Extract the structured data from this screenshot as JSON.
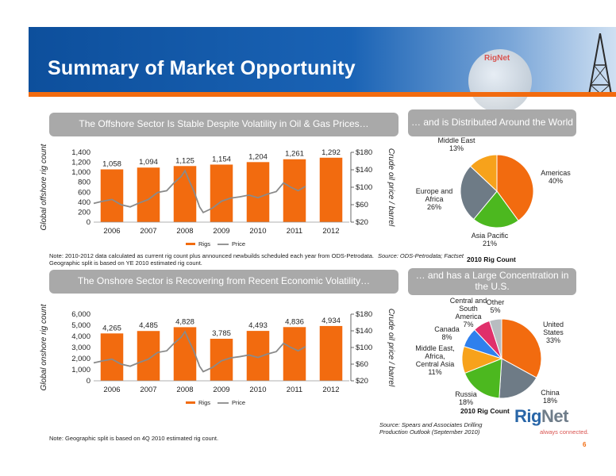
{
  "header": {
    "title": "Summary of Market Opportunity",
    "logo_small": "RigNet"
  },
  "offshore": {
    "banner": "The Offshore Sector Is Stable Despite Volatility in Oil & Gas Prices…",
    "note": "Note: 2010-2012 data calculated as current rig count plus announced newbuilds scheduled each year from ODS-Petrodata. Geographic split is based on YE 2010 estimated rig count.",
    "source": "Source:  ODS-Petrodata; Factset"
  },
  "onshore": {
    "banner": "The Onshore Sector is Recovering from Recent Economic Volatility…",
    "note": "Note: Geographic split is based on 4Q 2010 estimated rig count.",
    "source": "Source: Spears and Associates Drilling Production Outlook (September 2010)"
  },
  "world_banner": "… and is Distributed Around the World",
  "us_banner": "… and has a Large Concentration in the U.S.",
  "footer": {
    "logo_rig": "Rig",
    "logo_net": "Net",
    "tagline": "always connected.",
    "page": "6"
  },
  "chart_data": [
    {
      "type": "bar",
      "categories": [
        "2006",
        "2007",
        "2008",
        "2009",
        "2010",
        "2011",
        "2012"
      ],
      "series": [
        {
          "name": "Rigs",
          "values": [
            1058,
            1094,
            1125,
            1154,
            1204,
            1261,
            1292
          ],
          "labels": [
            "1,058",
            "1,094",
            "1,125",
            "1,154",
            "1,204",
            "1,261",
            "1,292"
          ]
        },
        {
          "name": "Price",
          "type": "line",
          "axis": "right",
          "x": [
            2006.0,
            2006.25,
            2006.5,
            2006.75,
            2007.0,
            2007.25,
            2007.5,
            2007.75,
            2008.0,
            2008.2,
            2008.4,
            2008.5,
            2008.6,
            2008.75,
            2008.9,
            2009.0,
            2009.25,
            2009.5,
            2009.75,
            2010.0,
            2010.25,
            2010.5,
            2010.75,
            2011.0,
            2011.2,
            2011.4,
            2011.6,
            2011.8
          ],
          "values": [
            63,
            68,
            72,
            60,
            55,
            64,
            72,
            88,
            92,
            110,
            125,
            138,
            118,
            90,
            55,
            42,
            52,
            68,
            75,
            78,
            82,
            76,
            84,
            90,
            110,
            100,
            92,
            102
          ]
        }
      ],
      "ylabel": "Global offshore rig count",
      "ylim": [
        0,
        1400
      ],
      "yticks": [
        "0",
        "200",
        "400",
        "600",
        "800",
        "1,000",
        "1,200",
        "1,400"
      ],
      "y2label": "Crude oil price / barrel",
      "y2lim": [
        20,
        180
      ],
      "y2ticks": [
        "$20",
        "$60",
        "$100",
        "$140",
        "$180"
      ],
      "legend": [
        "Rigs",
        "Price"
      ]
    },
    {
      "type": "bar",
      "categories": [
        "2006",
        "2007",
        "2008",
        "2009",
        "2010",
        "2011",
        "2012"
      ],
      "series": [
        {
          "name": "Rigs",
          "values": [
            4265,
            4485,
            4828,
            3785,
            4493,
            4836,
            4934
          ],
          "labels": [
            "4,265",
            "4,485",
            "4,828",
            "3,785",
            "4,493",
            "4,836",
            "4,934"
          ]
        },
        {
          "name": "Price",
          "type": "line",
          "axis": "right",
          "x": [
            2006.0,
            2006.25,
            2006.5,
            2006.75,
            2007.0,
            2007.25,
            2007.5,
            2007.75,
            2008.0,
            2008.2,
            2008.4,
            2008.5,
            2008.6,
            2008.75,
            2008.9,
            2009.0,
            2009.25,
            2009.5,
            2009.75,
            2010.0,
            2010.25,
            2010.5,
            2010.75,
            2011.0,
            2011.2,
            2011.4,
            2011.6,
            2011.8
          ],
          "values": [
            63,
            68,
            72,
            60,
            55,
            64,
            72,
            88,
            92,
            110,
            125,
            138,
            118,
            90,
            55,
            42,
            52,
            68,
            75,
            78,
            82,
            76,
            84,
            90,
            110,
            100,
            92,
            102
          ]
        }
      ],
      "ylabel": "Global onshore rig count",
      "ylim": [
        0,
        6000
      ],
      "yticks": [
        "0",
        "1,000",
        "2,000",
        "3,000",
        "4,000",
        "5,000",
        "6,000"
      ],
      "y2label": "Crude oil price / barrel",
      "y2lim": [
        20,
        180
      ],
      "y2ticks": [
        "$20",
        "$60",
        "$100",
        "$140",
        "$180"
      ],
      "legend": [
        "Rigs",
        "Price"
      ]
    },
    {
      "type": "pie",
      "title": "2010 Rig Count",
      "slices": [
        {
          "name": "Americas",
          "value": 40,
          "label": "40%",
          "color": "#f26b0f"
        },
        {
          "name": "Asia Pacific",
          "value": 21,
          "label": "21%",
          "color": "#4cb81f"
        },
        {
          "name": "Europe and Africa",
          "value": 26,
          "label": "26%",
          "color": "#6e7b86"
        },
        {
          "name": "Middle East",
          "value": 13,
          "label": "13%",
          "color": "#f7a21b"
        }
      ]
    },
    {
      "type": "pie",
      "title": "2010 Rig Count",
      "slices": [
        {
          "name": "United States",
          "value": 33,
          "label": "33%",
          "color": "#f26b0f"
        },
        {
          "name": "China",
          "value": 18,
          "label": "18%",
          "color": "#6e7b86"
        },
        {
          "name": "Russia",
          "value": 18,
          "label": "18%",
          "color": "#4cb81f"
        },
        {
          "name": "Middle East, Africa, Central Asia",
          "value": 11,
          "label": "11%",
          "color": "#f7a21b"
        },
        {
          "name": "Canada",
          "value": 8,
          "label": "8%",
          "color": "#2f80ed"
        },
        {
          "name": "Central and South America",
          "value": 7,
          "label": "7%",
          "color": "#e0306b"
        },
        {
          "name": "Other",
          "value": 5,
          "label": "5%",
          "color": "#b8bcc0"
        }
      ]
    }
  ]
}
